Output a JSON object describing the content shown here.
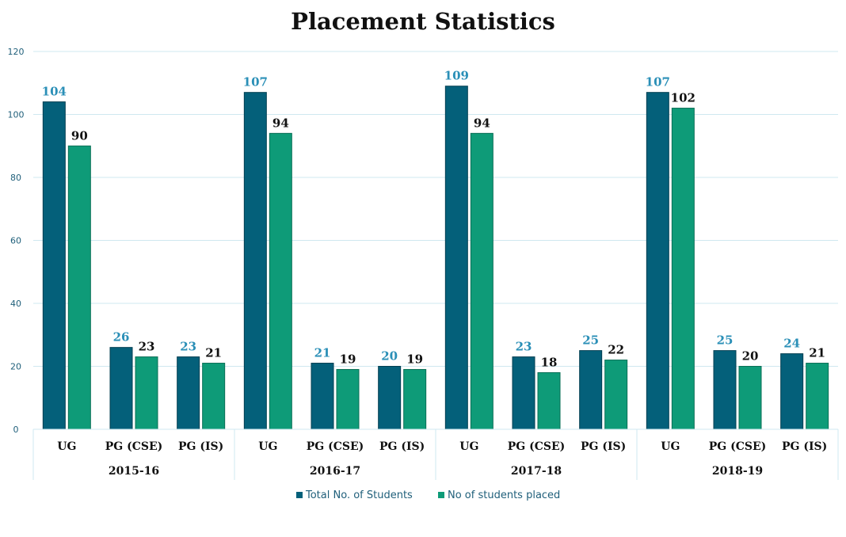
{
  "chart_data": {
    "type": "bar",
    "title": "Placement Statistics",
    "xlabel": "",
    "ylabel": "",
    "ylim": [
      0,
      120
    ],
    "yticks": [
      0,
      20,
      40,
      60,
      80,
      100,
      120
    ],
    "grid": true,
    "legend_position": "bottom",
    "groups": [
      {
        "label": "2015-16",
        "categories": [
          "UG",
          "PG (CSE)",
          "PG (IS)"
        ]
      },
      {
        "label": "2016-17",
        "categories": [
          "UG",
          "PG (CSE)",
          "PG (IS)"
        ]
      },
      {
        "label": "2017-18",
        "categories": [
          "UG",
          "PG (CSE)",
          "PG (IS)"
        ]
      },
      {
        "label": "2018-19",
        "categories": [
          "UG",
          "PG (CSE)",
          "PG (IS)"
        ]
      }
    ],
    "series": [
      {
        "name": "Total No. of  Students",
        "color": "#04607a",
        "values": [
          104,
          26,
          23,
          107,
          21,
          20,
          109,
          23,
          25,
          107,
          25,
          24
        ]
      },
      {
        "name": "No of students placed",
        "color": "#0e9b78",
        "values": [
          90,
          23,
          21,
          94,
          19,
          19,
          94,
          18,
          22,
          102,
          20,
          21
        ]
      }
    ]
  }
}
